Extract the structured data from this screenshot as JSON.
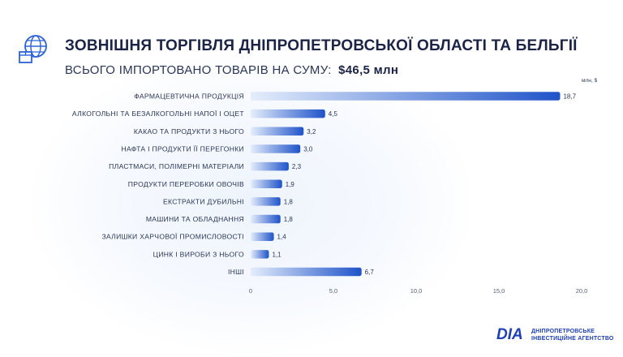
{
  "header": {
    "title": "ЗОВНІШНЯ ТОРГІВЛЯ ДНІПРОПЕТРОВСЬКОЇ ОБЛАСТІ ТА БЕЛЬГІЇ",
    "subtitle_prefix": "ВСЬОГО ІМПОРТОВАНО ТОВАРІВ НА СУМУ:",
    "subtitle_amount": "$46,5 млн"
  },
  "colors": {
    "bar_start": "#e4edfb",
    "bar_end": "#1f53c9",
    "title": "#1b2446",
    "brand": "#1d3fb8"
  },
  "icons": {
    "header": "globe-box-icon"
  },
  "footer": {
    "logo_mark": "DIA",
    "logo_text_line1": "ДНІПРОПЕТРОВСЬКЕ",
    "logo_text_line2": "ІНВЕСТИЦІЙНЕ АГЕНТСТВО"
  },
  "chart_data": {
    "type": "bar",
    "orientation": "horizontal",
    "unit": "млн, $",
    "categories": [
      "ФАРМАЦЕВТИЧНА ПРОДУКЦІЯ",
      "АЛКОГОЛЬНІ ТА БЕЗАЛКОГОЛЬНІ НАПОЇ І ОЦЕТ",
      "КАКАО ТА ПРОДУКТИ З НЬОГО",
      "НАФТА І ПРОДУКТИ ЇЇ ПЕРЕГОНКИ",
      "ПЛАСТМАСИ, ПОЛІМЕРНІ МАТЕРІАЛИ",
      "ПРОДУКТИ ПЕРЕРОБКИ ОВОЧІВ",
      "ЕКСТРАКТИ ДУБИЛЬНІ",
      "МАШИНИ ТА ОБЛАДНАННЯ",
      "ЗАЛИШКИ ХАРЧОВОЇ ПРОМИСЛОВОСТІ",
      "ЦИНК І ВИРОБИ З НЬОГО",
      "ІНШІ"
    ],
    "values": [
      18.7,
      4.5,
      3.2,
      3.0,
      2.3,
      1.9,
      1.8,
      1.8,
      1.4,
      1.1,
      6.7
    ],
    "value_labels": [
      "18,7",
      "4,5",
      "3,2",
      "3,0",
      "2,3",
      "1,9",
      "1,8",
      "1,8",
      "1,4",
      "1,1",
      "6,7"
    ],
    "xlim": [
      0,
      20
    ],
    "xticks": [
      0,
      5,
      10,
      15,
      20
    ],
    "xtick_labels": [
      "0",
      "5,0",
      "10,0",
      "15,0",
      "20,0"
    ],
    "grid": false,
    "legend": "none"
  }
}
